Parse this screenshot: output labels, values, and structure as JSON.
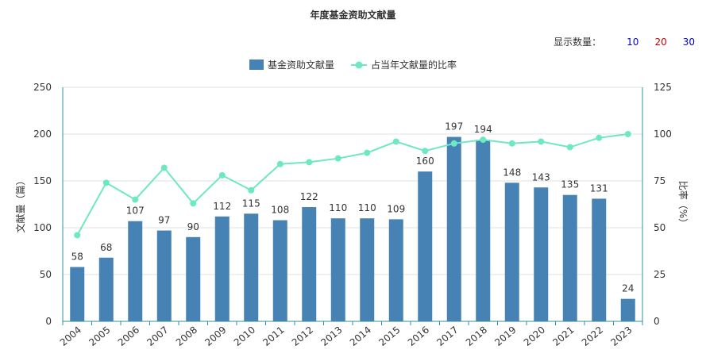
{
  "title": "年度基金资助文献量",
  "count_selector": {
    "label": "显示数量：",
    "options": [
      {
        "label": "10",
        "color": "#0000cc"
      },
      {
        "label": "20",
        "color": "#cc0000"
      },
      {
        "label": "30",
        "color": "#0000cc"
      }
    ]
  },
  "chart_data": {
    "type": "bar",
    "title": "年度基金资助文献量",
    "categories": [
      "2004",
      "2005",
      "2006",
      "2007",
      "2008",
      "2009",
      "2010",
      "2011",
      "2012",
      "2013",
      "2014",
      "2015",
      "2016",
      "2017",
      "2018",
      "2019",
      "2020",
      "2021",
      "2022",
      "2023"
    ],
    "series": [
      {
        "name": "基金资助文献量",
        "type": "bar",
        "axis": "left",
        "color": "#4682b4",
        "values": [
          58,
          68,
          107,
          97,
          90,
          112,
          115,
          108,
          122,
          110,
          110,
          109,
          160,
          197,
          194,
          148,
          143,
          135,
          131,
          24
        ]
      },
      {
        "name": "占当年文献量的比率",
        "type": "line",
        "axis": "right",
        "color": "#6ee8c3",
        "values": [
          46,
          74,
          65,
          82,
          63,
          78,
          70,
          84,
          85,
          87,
          90,
          96,
          91,
          95,
          97,
          95,
          96,
          93,
          98,
          100
        ]
      }
    ],
    "ylabel": "文献量（篇）",
    "ylabel_right": "比率（%）",
    "ylim": [
      0,
      250
    ],
    "ylim_right": [
      0,
      125
    ],
    "yticks": [
      0,
      50,
      100,
      150,
      200,
      250
    ],
    "yticks_right": [
      0,
      25,
      50,
      75,
      100,
      125
    ],
    "grid": true,
    "legend_position": "top-center"
  }
}
